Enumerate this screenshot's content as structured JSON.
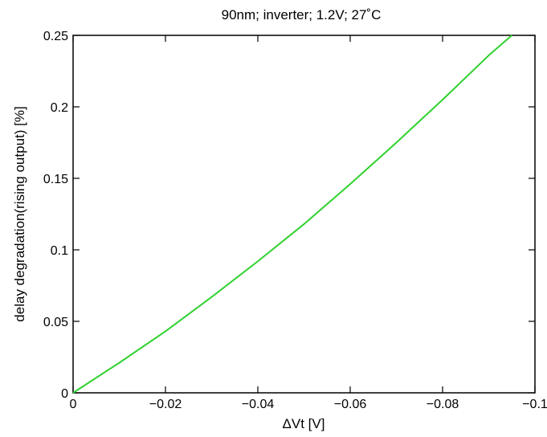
{
  "chart_data": {
    "type": "line",
    "title": "90nm; inverter; 1.2V; 27˚C",
    "xlabel": "ΔVt [V]",
    "ylabel": "delay degradation(rising output) [%]",
    "xlim": [
      0,
      -0.1
    ],
    "ylim": [
      0,
      0.25
    ],
    "xticks": [
      0,
      -0.02,
      -0.04,
      -0.06,
      -0.08,
      -0.1
    ],
    "xtick_labels": [
      "0",
      "−0.02",
      "−0.04",
      "−0.06",
      "−0.08",
      "−0.1"
    ],
    "yticks": [
      0,
      0.05,
      0.1,
      0.15,
      0.2,
      0.25
    ],
    "ytick_labels": [
      "0",
      "0.05",
      "0.1",
      "0.15",
      "0.2",
      "0.25"
    ],
    "grid": false,
    "series": [
      {
        "color": "#2fd12f",
        "x": [
          0,
          -0.01,
          -0.02,
          -0.03,
          -0.04,
          -0.05,
          -0.06,
          -0.07,
          -0.08,
          -0.09,
          -0.095
        ],
        "y": [
          0,
          0.021,
          0.043,
          0.067,
          0.092,
          0.118,
          0.146,
          0.175,
          0.205,
          0.236,
          0.25
        ]
      }
    ]
  }
}
